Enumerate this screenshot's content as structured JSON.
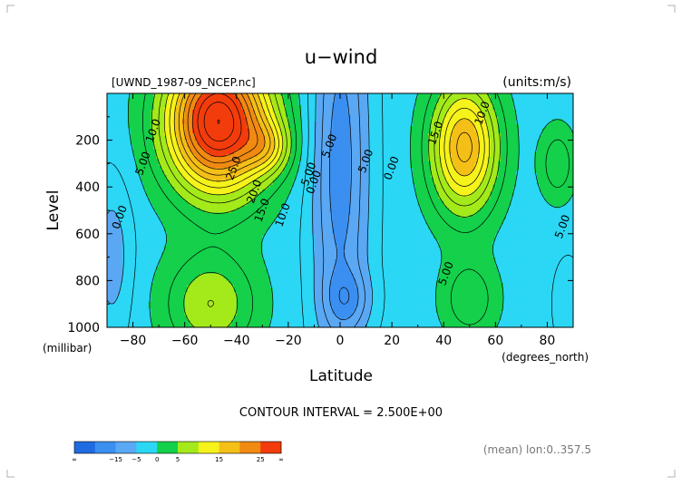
{
  "chart_data": {
    "type": "contour",
    "title": "u−wind",
    "dataset_label": "[UWND_1987-09_NCEP.nc]",
    "units_label": "(units:m/s)",
    "xlabel": "Latitude",
    "x_units_label": "(degrees_north)",
    "ylabel": "Level",
    "y_units_label": "(millibar)",
    "xlim": [
      -90,
      90
    ],
    "ylim": [
      1000,
      0
    ],
    "x_ticks": [
      -80,
      -60,
      -40,
      -20,
      0,
      20,
      40,
      60,
      80
    ],
    "x_tick_labels": [
      "−80",
      "−60",
      "−40",
      "−20",
      "0",
      "20",
      "40",
      "60",
      "80"
    ],
    "y_ticks": [
      200,
      400,
      600,
      800,
      1000
    ],
    "y_tick_labels": [
      "200",
      "400",
      "600",
      "800",
      "1000"
    ],
    "contour_interval_text": "CONTOUR INTERVAL = 2.500E+00",
    "subset_note": "(mean) lon:0..357.5",
    "contour_labels": [
      {
        "text": "10.0",
        "x": -72,
        "y": 160
      },
      {
        "text": "5.00",
        "x": -76,
        "y": 300
      },
      {
        "text": "0.00",
        "x": -85,
        "y": 530
      },
      {
        "text": "25.0",
        "x": -41,
        "y": 320
      },
      {
        "text": "20.0",
        "x": -33,
        "y": 420
      },
      {
        "text": "15.0",
        "x": -30,
        "y": 500
      },
      {
        "text": "10.0",
        "x": -22,
        "y": 520
      },
      {
        "text": "5.00",
        "x": -12,
        "y": 345
      },
      {
        "text": "0.00",
        "x": -10,
        "y": 380
      },
      {
        "text": "5.00",
        "x": -4,
        "y": 225
      },
      {
        "text": "5.00",
        "x": 10,
        "y": 290
      },
      {
        "text": "0.00",
        "x": 20,
        "y": 320
      },
      {
        "text": "10.0",
        "x": 55,
        "y": 85
      },
      {
        "text": "15.0",
        "x": 37,
        "y": 170
      },
      {
        "text": "5.00",
        "x": 86,
        "y": 570
      },
      {
        "text": "5.00",
        "x": 41,
        "y": 770
      }
    ],
    "colorbar": {
      "label_values": [
        "∞",
        "−15",
        "−5",
        "0",
        "5",
        "15",
        "25",
        "∞"
      ],
      "bins": [
        {
          "color": "#1f6be0"
        },
        {
          "color": "#3b8ff0"
        },
        {
          "color": "#5aa8f4"
        },
        {
          "color": "#2bd7f4"
        },
        {
          "color": "#14d04a"
        },
        {
          "color": "#a4ea1a"
        },
        {
          "color": "#f5f31b"
        },
        {
          "color": "#f4bf17"
        },
        {
          "color": "#f08a12"
        },
        {
          "color": "#f33c0c"
        }
      ]
    },
    "fill_colors": {
      "deep_blue": "#3b8ff0",
      "blue": "#5aa8f4",
      "cyan": "#2bd7f4",
      "green": "#14d04a",
      "yellow_green": "#a4ea1a",
      "yellow": "#f5f31b",
      "light_orange": "#f4bf17",
      "orange": "#f08a12",
      "red": "#f33c0c"
    }
  }
}
